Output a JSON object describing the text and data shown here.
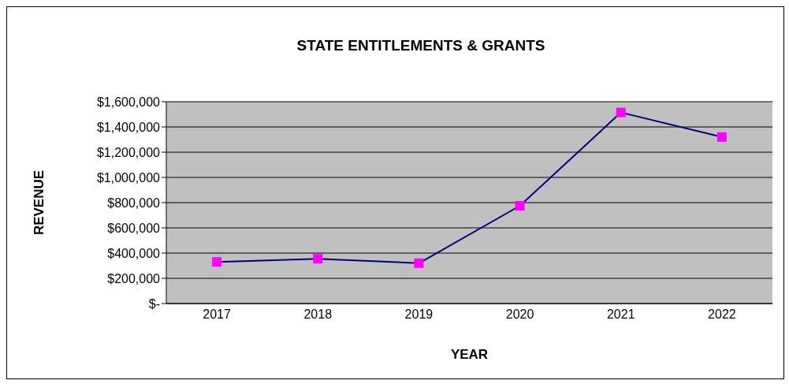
{
  "chart_data": {
    "type": "line",
    "title": "STATE ENTITLEMENTS & GRANTS",
    "xlabel": "YEAR",
    "ylabel": "REVENUE",
    "categories": [
      "2017",
      "2018",
      "2019",
      "2020",
      "2021",
      "2022"
    ],
    "series": [
      {
        "color": "#000080",
        "values": [
          330000,
          355000,
          320000,
          775000,
          1515000,
          1320000
        ]
      }
    ],
    "ylim": [
      0,
      1600000
    ],
    "yticks": [
      {
        "value": 0,
        "label": "$-"
      },
      {
        "value": 200000,
        "label": "$200,000"
      },
      {
        "value": 400000,
        "label": "$400,000"
      },
      {
        "value": 600000,
        "label": "$600,000"
      },
      {
        "value": 800000,
        "label": "$800,000"
      },
      {
        "value": 1000000,
        "label": "$1,000,000"
      },
      {
        "value": 1200000,
        "label": "$1,200,000"
      },
      {
        "value": 1400000,
        "label": "$1,400,000"
      },
      {
        "value": 1600000,
        "label": "$1,600,000"
      }
    ],
    "grid": "y",
    "marker": "square",
    "line_style": "solid"
  }
}
